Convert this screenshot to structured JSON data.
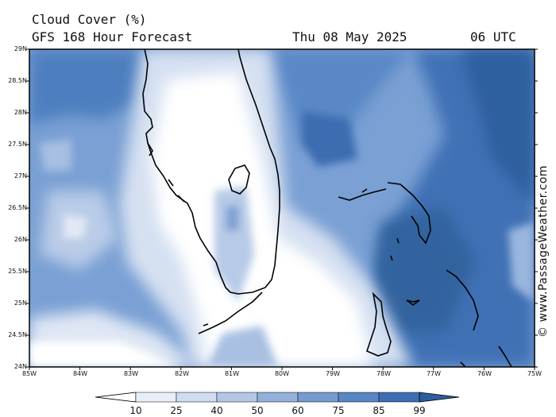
{
  "header": {
    "title": "Cloud Cover (%)",
    "model": "GFS 168 Hour Forecast",
    "date": "Thu 08 May 2025",
    "time": "06 UTC"
  },
  "map": {
    "lat_labels": [
      "29N",
      "28.5N",
      "28N",
      "27.5N",
      "27N",
      "26.5N",
      "26N",
      "25.5N",
      "25N",
      "24.5N",
      "24N"
    ],
    "lon_labels": [
      "85W",
      "84W",
      "83W",
      "82W",
      "81W",
      "80W",
      "79W",
      "78W",
      "77W",
      "76W",
      "75W"
    ],
    "lat_range": [
      24,
      29
    ],
    "lon_range": [
      -85,
      -75
    ],
    "credit": "© www.PassageWeather.com"
  },
  "legend": {
    "values": [
      "10",
      "25",
      "40",
      "50",
      "60",
      "75",
      "85",
      "99"
    ],
    "colors": [
      "#ffffff",
      "#e9eff7",
      "#d0dcef",
      "#b3c8e5",
      "#93b1db",
      "#759bd0",
      "#5886c4",
      "#3c6fb2",
      "#2b5d9f"
    ]
  }
}
